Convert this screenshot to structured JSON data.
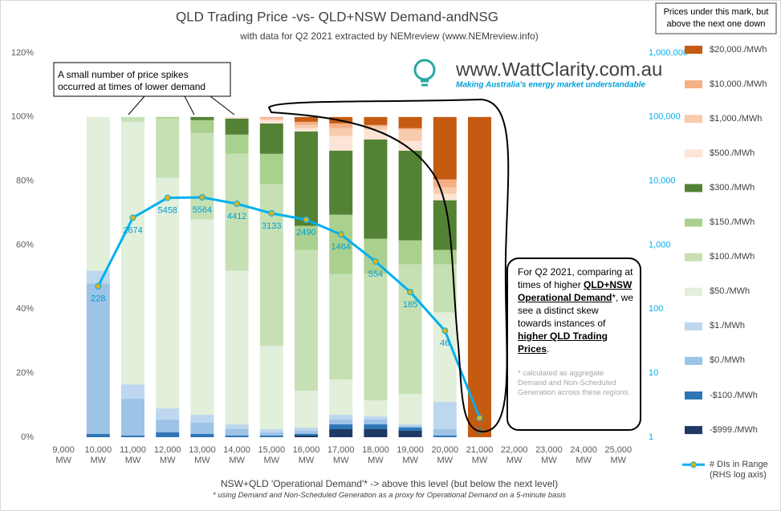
{
  "chart_data": {
    "type": "bar",
    "title": "QLD Trading Price -vs- QLD+NSW Demand-andNSG",
    "subtitle": "with data for Q2 2021  extracted by NEMreview (www.NEMreview.info)",
    "x_label": "NSW+QLD  'Operational Demand'* -> above this level (but below the next level)",
    "x_note": "* using Demand and Non-Scheduled Generation as a proxy for Operational Demand on a 5-minute basis",
    "logo": "www.WattClarity.com.au",
    "logo_tagline": "Making Australia's energy market understandable",
    "legend_title": "Prices under this mark, but above the next one down",
    "annotation_left": "A small number of price spikes occurred at times of lower demand",
    "annotation_right": [
      "For Q2 2021, comparing at times of higher ",
      "QLD+NSW Operational Demand",
      "*, we see a distinct skew towards instances of ",
      "higher QLD Trading Prices",
      "."
    ],
    "annotation_footnote": "*  calculated as aggregate Demand and Non-Scheduled Generation across these regions.",
    "categories": [
      "9,000\nMW",
      "10,000\nMW",
      "11,000\nMW",
      "12,000\nMW",
      "13,000\nMW",
      "14,000\nMW",
      "15,000\nMW",
      "16,000\nMW",
      "17,000\nMW",
      "18,000\nMW",
      "19,000\nMW",
      "20,000\nMW",
      "21,000\nMW",
      "22,000\nMW",
      "23,000\nMW",
      "24,000\nMW",
      "25,000\nMW"
    ],
    "ylim": [
      0,
      120
    ],
    "yticks": [
      {
        "value": 0,
        "label": "0%"
      },
      {
        "value": 20,
        "label": "20%"
      },
      {
        "value": 40,
        "label": "40%"
      },
      {
        "value": 60,
        "label": "60%"
      },
      {
        "value": 80,
        "label": "80%"
      },
      {
        "value": 100,
        "label": "100%"
      },
      {
        "value": 120,
        "label": "120%"
      }
    ],
    "y2lim": [
      1,
      1000000
    ],
    "y2_log": true,
    "y2ticks": [
      1,
      10,
      100,
      {
        "value": 1000,
        "label": "1,000"
      },
      {
        "value": 10000,
        "label": "10,000"
      },
      {
        "value": 100000,
        "label": "100,000"
      },
      {
        "value": 1000000,
        "label": "1,000,000"
      }
    ],
    "grid": false,
    "series": [
      {
        "name": "-$999./MWh",
        "color": "#1f3864",
        "values": [
          null,
          0,
          0,
          0,
          0,
          0,
          0,
          0.5,
          2.5,
          2.5,
          2,
          0,
          0,
          null,
          null,
          null,
          null
        ]
      },
      {
        "name": "-$100./MWh",
        "color": "#2e75b6",
        "values": [
          null,
          1,
          0.5,
          1.5,
          1,
          0.5,
          0.5,
          0.5,
          1.5,
          1.5,
          1,
          0.5,
          0,
          null,
          null,
          null,
          null
        ]
      },
      {
        "name": "$0./MWh",
        "color": "#9dc3e6",
        "values": [
          null,
          47,
          11.5,
          4,
          3.5,
          2,
          1,
          1,
          1.5,
          1.5,
          0.5,
          2,
          0,
          null,
          null,
          null,
          null
        ]
      },
      {
        "name": "$1./MWh",
        "color": "#bdd7ee",
        "values": [
          null,
          4,
          4.5,
          3.5,
          2.5,
          1.5,
          1,
          1,
          1.5,
          1,
          0.5,
          8.5,
          0,
          null,
          null,
          null,
          null
        ]
      },
      {
        "name": "$50./MWh",
        "color": "#e2efda",
        "values": [
          null,
          48,
          82,
          72,
          61,
          48,
          26,
          11.5,
          11,
          5,
          9.5,
          28,
          0,
          null,
          null,
          null,
          null
        ]
      },
      {
        "name": "$100./MWh",
        "color": "#c6e0b4",
        "values": [
          null,
          0,
          1.5,
          18.5,
          27,
          36.5,
          50.5,
          44,
          33,
          39.5,
          40.5,
          15,
          0,
          null,
          null,
          null,
          null
        ]
      },
      {
        "name": "$150./MWh",
        "color": "#a9d08e",
        "values": [
          null,
          0,
          0,
          0.5,
          4,
          6,
          9.5,
          7.5,
          18.5,
          11,
          7.5,
          4.5,
          0,
          null,
          null,
          null,
          null
        ]
      },
      {
        "name": "$300./MWh",
        "color": "#548235",
        "values": [
          null,
          0,
          0,
          0,
          1,
          5,
          9.5,
          29.5,
          20,
          31,
          28,
          15.5,
          0,
          null,
          null,
          null,
          null
        ]
      },
      {
        "name": "$500./MWh",
        "color": "#fce4d6",
        "values": [
          null,
          0,
          0,
          0,
          0,
          0.5,
          1,
          1,
          4.5,
          3,
          3,
          2,
          0,
          null,
          null,
          null,
          null
        ]
      },
      {
        "name": "$1,000./MWh",
        "color": "#f8cbad",
        "values": [
          null,
          0,
          0,
          0,
          0,
          0,
          0.5,
          1,
          2.5,
          1,
          3.5,
          2,
          0,
          null,
          null,
          null,
          null
        ]
      },
      {
        "name": "$10,000./MWh",
        "color": "#f4b084",
        "values": [
          null,
          0,
          0,
          0,
          0,
          0,
          0.5,
          1,
          1.5,
          0.5,
          0.5,
          2.5,
          0,
          null,
          null,
          null,
          null
        ]
      },
      {
        "name": "$20,000./MWh",
        "color": "#c55a11",
        "values": [
          null,
          0,
          0,
          0,
          0,
          0,
          0,
          1.5,
          2,
          2.5,
          3.5,
          19.5,
          100,
          null,
          null,
          null,
          null
        ]
      },
      {
        "name": "# DIs in Range\n(RHS log axis)",
        "type": "line",
        "axis": "y2",
        "color": "#00b0f0",
        "marker_color": "#d9b51a",
        "values": [
          null,
          228,
          2674,
          5458,
          5564,
          4412,
          3133,
          2490,
          1464,
          554,
          185,
          46,
          2,
          null,
          null,
          null,
          null
        ]
      }
    ]
  }
}
